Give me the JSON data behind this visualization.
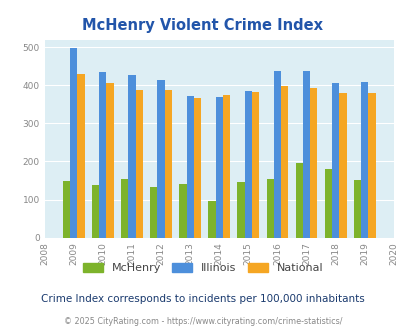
{
  "title": "McHenry Violent Crime Index",
  "years": [
    2009,
    2010,
    2011,
    2012,
    2013,
    2014,
    2015,
    2016,
    2017,
    2018,
    2019
  ],
  "mchenry": [
    148,
    138,
    155,
    132,
    142,
    95,
    145,
    155,
    197,
    180,
    150
  ],
  "illinois": [
    498,
    435,
    428,
    414,
    372,
    370,
    384,
    438,
    438,
    405,
    408
  ],
  "national": [
    430,
    405,
    387,
    387,
    367,
    375,
    383,
    397,
    394,
    379,
    379
  ],
  "mchenry_color": "#7db32b",
  "illinois_color": "#4d8fdb",
  "national_color": "#f5a623",
  "bg_color": "#ddeef4",
  "title_color": "#2255aa",
  "subtitle_color": "#1a3a6e",
  "footer_color": "#888888",
  "footer_link_color": "#4488cc",
  "subtitle": "Crime Index corresponds to incidents per 100,000 inhabitants",
  "footer": "© 2025 CityRating.com - https://www.cityrating.com/crime-statistics/",
  "xlim": [
    2008,
    2020
  ],
  "ylim": [
    0,
    520
  ],
  "yticks": [
    0,
    100,
    200,
    300,
    400,
    500
  ],
  "bar_width": 0.25
}
